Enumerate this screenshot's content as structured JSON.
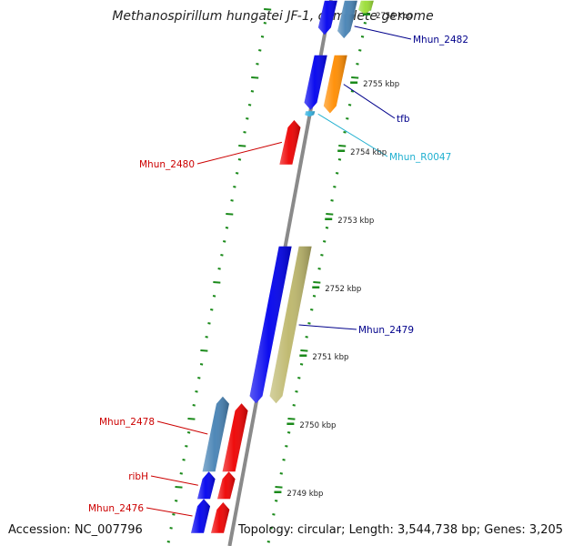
{
  "title": "Methanospirillum hungatei JF-1, complete genome",
  "footer": {
    "accession": "Accession: NC_007796",
    "topology": "Topology: circular; Length: 3,544,738 bp; Genes: 3,205"
  },
  "colors": {
    "backbone": "#8a8a8a",
    "ticks": "#1a8a1a",
    "forward_gene": "#0000ee",
    "reverse_gene": "#ee0000",
    "steelblue_gene": "#4682b4",
    "orange_gene": "#ff8c00",
    "khaki_gene": "#bdb76b",
    "rna_gene": "#30b0e0",
    "label_blue": "#00008b",
    "label_red": "#cc0000",
    "label_cyan": "#20b0d0"
  },
  "scale": {
    "unit": "kbp",
    "ticks": [
      {
        "pos": 2756,
        "label": "2756 kbp"
      },
      {
        "pos": 2755,
        "label": "2755 kbp"
      },
      {
        "pos": 2754,
        "label": "2754 kbp"
      },
      {
        "pos": 2753,
        "label": "2753 kbp"
      },
      {
        "pos": 2752,
        "label": "2752 kbp"
      },
      {
        "pos": 2751,
        "label": "2751 kbp"
      },
      {
        "pos": 2750,
        "label": "2750 kbp"
      },
      {
        "pos": 2749,
        "label": "2749 kbp"
      }
    ]
  },
  "features": [
    {
      "id": "g_top_blue",
      "name": "",
      "strand": "+",
      "ring": 1,
      "color": "#0000ee",
      "start": 2756.2,
      "end": 2755.7
    },
    {
      "id": "g_top_steel",
      "name": "",
      "strand": "+",
      "ring": 2,
      "color": "#4682b4",
      "start": 2756.2,
      "end": 2755.65
    },
    {
      "id": "g_top_green",
      "name": "",
      "strand": "+",
      "ring": 3,
      "color": "#99dd33",
      "start": 2756.2,
      "end": 2756.0
    },
    {
      "id": "g_2481",
      "name": "",
      "strand": "+",
      "ring": 1,
      "color": "#0000ee",
      "start": 2755.4,
      "end": 2754.6
    },
    {
      "id": "g_tfb",
      "name": "tfb",
      "strand": "+",
      "ring": 2,
      "color": "#ff8c00",
      "start": 2755.4,
      "end": 2754.55
    },
    {
      "id": "g_R0047",
      "name": "Mhun_R0047",
      "strand": "+",
      "ring": 1,
      "color": "#30b0e0",
      "start": 2754.58,
      "end": 2754.5
    },
    {
      "id": "g_2482",
      "name": "Mhun_2482",
      "strand": "+",
      "ring": 2,
      "color": "#4682b4",
      "start": 2756.0,
      "end": 2755.65
    },
    {
      "id": "g_2480",
      "name": "Mhun_2480",
      "strand": "-",
      "ring": 1,
      "color": "#ee0000",
      "start": 2753.8,
      "end": 2754.45
    },
    {
      "id": "g_2479a",
      "name": "",
      "strand": "+",
      "ring": 1,
      "color": "#0000ee",
      "start": 2752.6,
      "end": 2750.3
    },
    {
      "id": "g_2479",
      "name": "Mhun_2479",
      "strand": "+",
      "ring": 2,
      "color": "#bdb76b",
      "start": 2752.6,
      "end": 2750.3
    },
    {
      "id": "g_2478",
      "name": "Mhun_2478",
      "strand": "-",
      "ring": 2,
      "color": "#4682b4",
      "start": 2749.3,
      "end": 2750.4
    },
    {
      "id": "g_2477",
      "name": "",
      "strand": "-",
      "ring": 1,
      "color": "#ee0000",
      "start": 2749.3,
      "end": 2750.3
    },
    {
      "id": "g_ribH",
      "name": "ribH",
      "strand": "-",
      "ring": 2,
      "color": "#0000ee",
      "start": 2748.9,
      "end": 2749.3
    },
    {
      "id": "g_ribH_r",
      "name": "",
      "strand": "-",
      "ring": 1,
      "color": "#ee0000",
      "start": 2748.9,
      "end": 2749.3
    },
    {
      "id": "g_2476",
      "name": "Mhun_2476",
      "strand": "-",
      "ring": 2,
      "color": "#0000ee",
      "start": 2748.4,
      "end": 2748.9
    },
    {
      "id": "g_2476_r",
      "name": "",
      "strand": "-",
      "ring": 1,
      "color": "#ee0000",
      "start": 2748.4,
      "end": 2748.85
    }
  ]
}
